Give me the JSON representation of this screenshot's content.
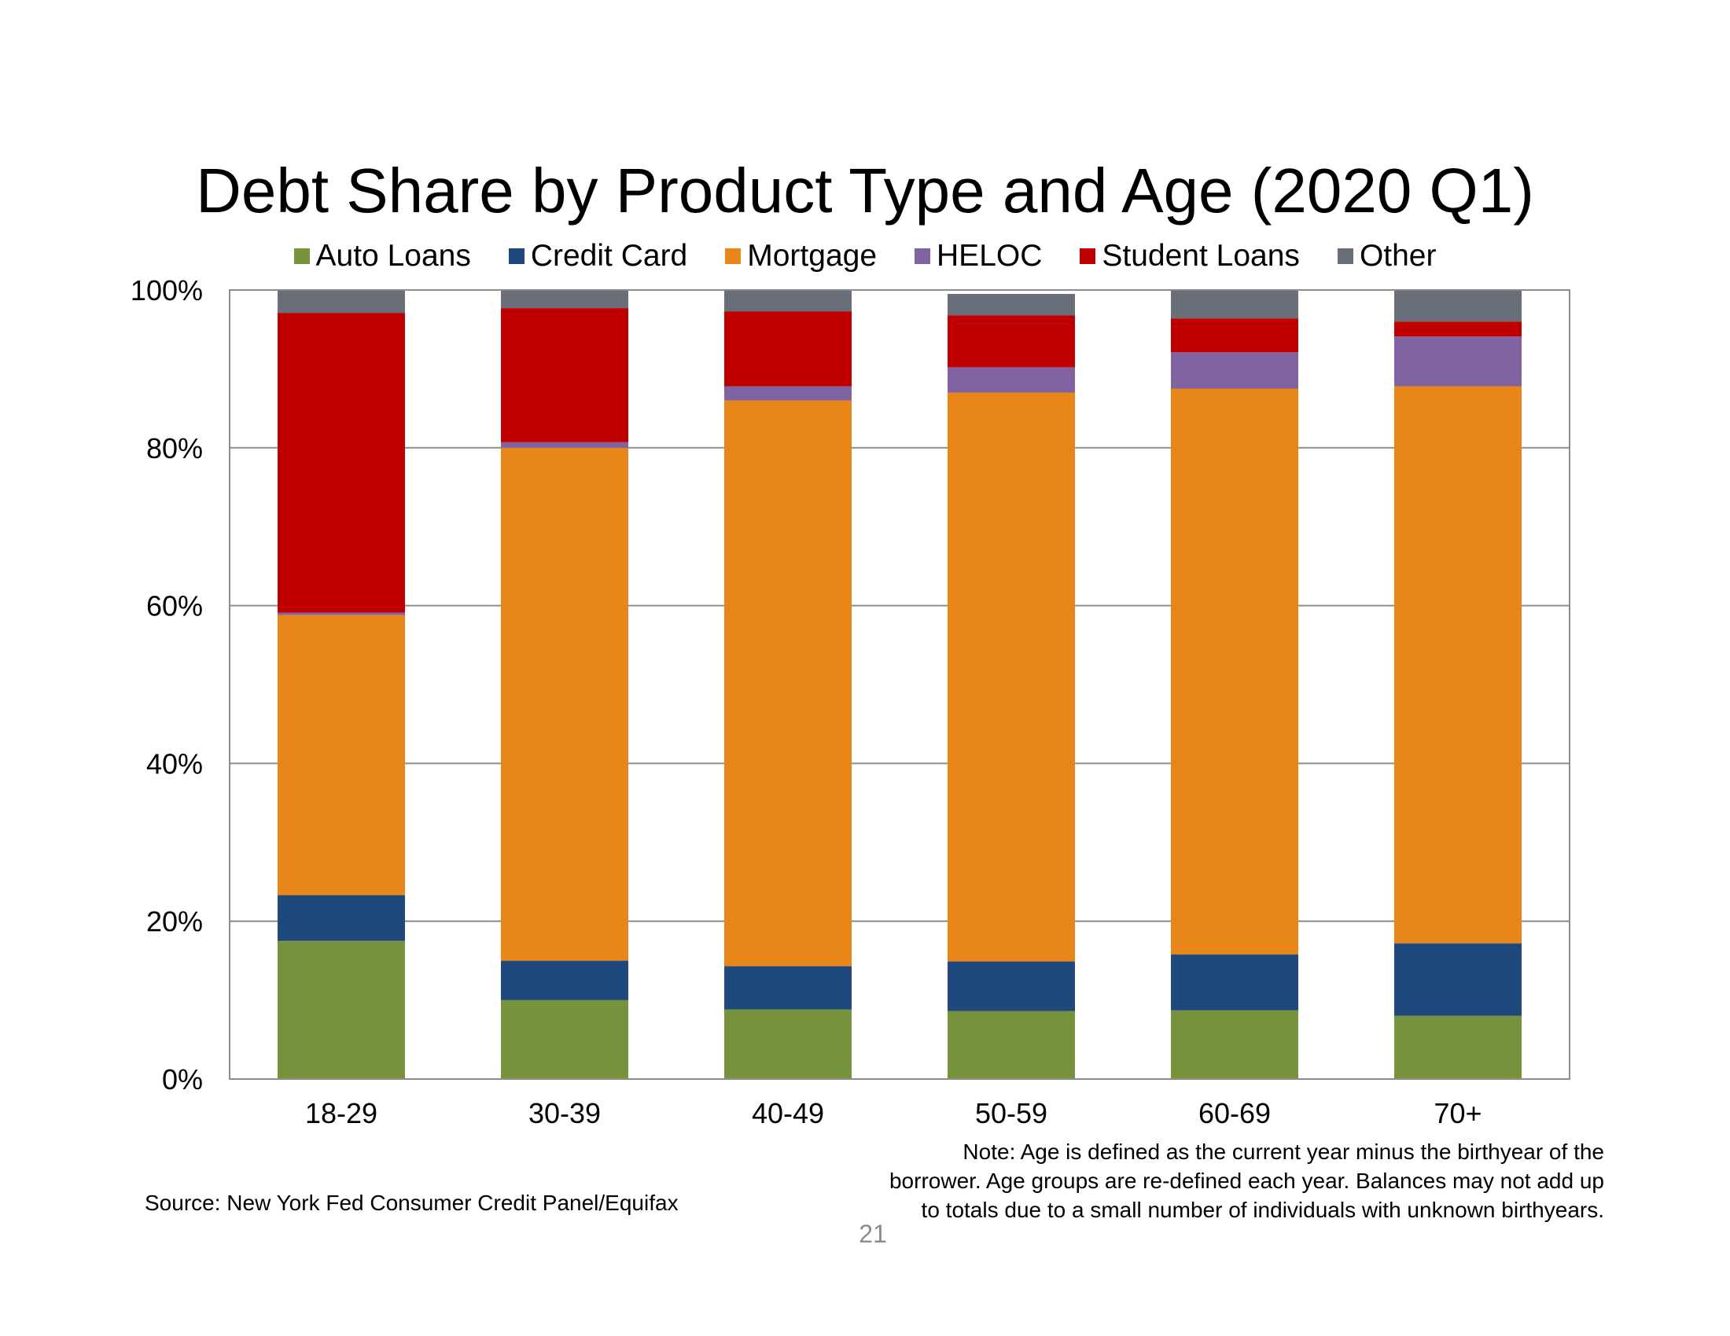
{
  "chart_data": {
    "type": "bar",
    "stacked": true,
    "title": "Debt Share by Product Type and Age (2020 Q1)",
    "xlabel": "",
    "ylabel": "",
    "ylim": [
      0,
      100
    ],
    "yticks": [
      "0%",
      "20%",
      "40%",
      "60%",
      "80%",
      "100%"
    ],
    "grid": true,
    "legend_position": "top",
    "categories": [
      "18-29",
      "30-39",
      "40-49",
      "50-59",
      "60-69",
      "70+"
    ],
    "series": [
      {
        "name": "Auto Loans",
        "color": "#77933c",
        "values": [
          17.5,
          10.0,
          8.8,
          8.6,
          8.7,
          8.0
        ]
      },
      {
        "name": "Credit Card",
        "color": "#1f497d",
        "values": [
          5.8,
          5.0,
          5.5,
          6.3,
          7.1,
          9.2
        ]
      },
      {
        "name": "Mortgage",
        "color": "#e8861a",
        "values": [
          35.5,
          65.0,
          71.7,
          72.1,
          71.7,
          70.6
        ]
      },
      {
        "name": "HELOC",
        "color": "#8064a2",
        "values": [
          0.3,
          0.7,
          1.8,
          3.2,
          4.6,
          6.3
        ]
      },
      {
        "name": "Student Loans",
        "color": "#c00000",
        "values": [
          38.0,
          17.0,
          9.5,
          6.6,
          4.3,
          1.9
        ]
      },
      {
        "name": "Other",
        "color": "#696f79",
        "values": [
          2.9,
          2.3,
          2.7,
          2.7,
          3.6,
          4.0
        ]
      }
    ]
  },
  "source": "Source: New York Fed Consumer Credit Panel/Equifax",
  "note_lines": [
    "Note: Age is defined as the current year minus the birthyear of the",
    "borrower. Age groups are re-defined each year. Balances may not add up",
    "to totals due to a small number of individuals with unknown birthyears."
  ],
  "page_number": "21"
}
